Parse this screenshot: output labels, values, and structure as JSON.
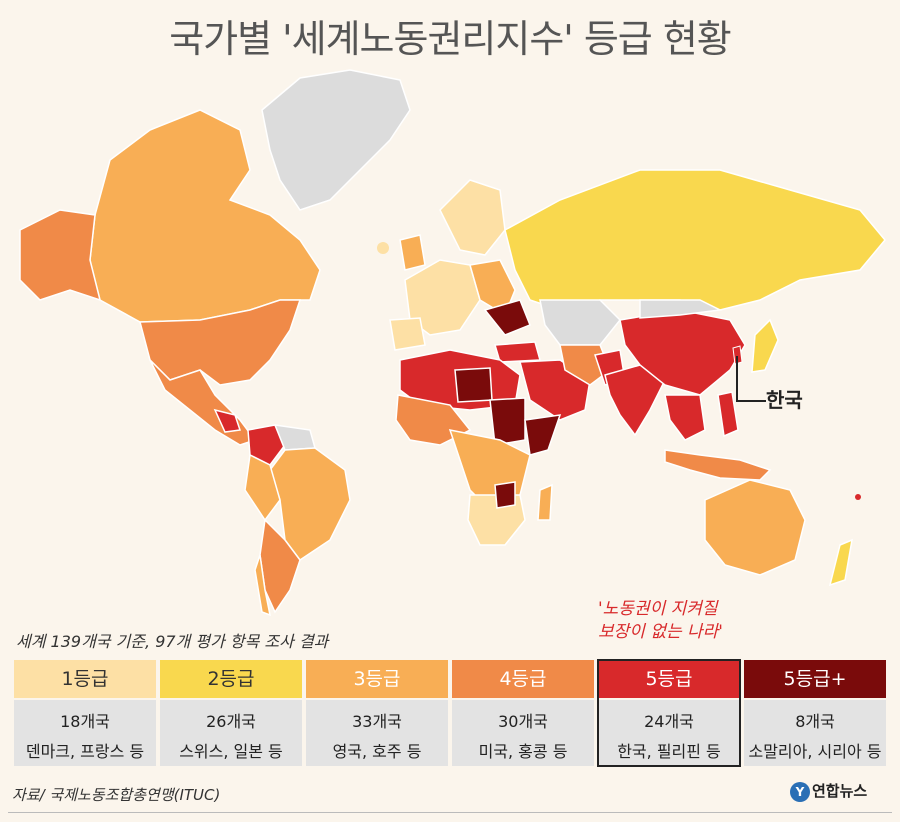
{
  "title": "국가별 '세계노동권리지수' 등급 현황",
  "subtitle": "세계 139개국 기준, 97개 평가 항목 조사 결과",
  "callout": {
    "line1": "'노동권이 지켜질",
    "line2": "보장이 없는 나라'"
  },
  "korea_label": "한국",
  "colors": {
    "grade1": "#fde0a5",
    "grade2": "#f9d84e",
    "grade3": "#f8ae55",
    "grade4": "#f08a48",
    "grade5": "#d8292b",
    "grade5plus": "#7a0b0b",
    "no_data": "#dcdcdc"
  },
  "grades": [
    {
      "label": "1등급",
      "count": "18개국",
      "examples": "덴마크, 프랑스 등"
    },
    {
      "label": "2등급",
      "count": "26개국",
      "examples": "스위스, 일본 등"
    },
    {
      "label": "3등급",
      "count": "33개국",
      "examples": "영국, 호주 등"
    },
    {
      "label": "4등급",
      "count": "30개국",
      "examples": "미국, 홍콩 등"
    },
    {
      "label": "5등급",
      "count": "24개국",
      "examples": "한국, 필리핀 등"
    },
    {
      "label": "5등급+",
      "count": "8개국",
      "examples": "소말리아, 시리아 등"
    }
  ],
  "source": "자료/ 국제노동조합총연맹(ITUC)",
  "logo": {
    "mark": "Y",
    "text": "연합뉴스"
  }
}
